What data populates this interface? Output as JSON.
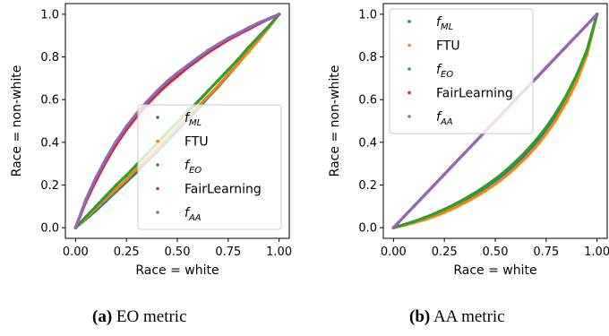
{
  "chart_data": [
    {
      "type": "scatter",
      "caption_prefix": "(a)",
      "caption_text": "EO metric",
      "xlabel": "Race = white",
      "ylabel": "Race = non-white",
      "xlim": [
        -0.05,
        1.05
      ],
      "ylim": [
        -0.05,
        1.05
      ],
      "xticks": [
        "0.00",
        "0.25",
        "0.50",
        "0.75",
        "1.00"
      ],
      "yticks": [
        "0.0",
        "0.2",
        "0.4",
        "0.6",
        "0.8",
        "1.0"
      ],
      "legend_position": "lower-right",
      "series": [
        {
          "name": "f",
          "sub": "ML",
          "color": "#1f77b4",
          "x": [
            0,
            0.05,
            0.1,
            0.15,
            0.2,
            0.25,
            0.3,
            0.35,
            0.4,
            0.45,
            0.5,
            0.55,
            0.6,
            0.65,
            0.7,
            0.75,
            0.8,
            0.85,
            0.9,
            0.95,
            1.0
          ],
          "y": [
            0,
            0.04,
            0.08,
            0.125,
            0.17,
            0.215,
            0.26,
            0.31,
            0.355,
            0.405,
            0.455,
            0.505,
            0.555,
            0.61,
            0.66,
            0.715,
            0.77,
            0.825,
            0.88,
            0.94,
            1.0
          ]
        },
        {
          "name": "FTU",
          "sub": "",
          "color": "#ff7f0e",
          "x": [
            0,
            0.05,
            0.1,
            0.15,
            0.2,
            0.25,
            0.3,
            0.35,
            0.4,
            0.45,
            0.5,
            0.55,
            0.6,
            0.65,
            0.7,
            0.75,
            0.8,
            0.85,
            0.9,
            0.95,
            1.0
          ],
          "y": [
            0,
            0.045,
            0.09,
            0.135,
            0.18,
            0.225,
            0.275,
            0.32,
            0.37,
            0.42,
            0.47,
            0.515,
            0.565,
            0.615,
            0.665,
            0.72,
            0.77,
            0.825,
            0.88,
            0.94,
            1.0
          ]
        },
        {
          "name": "f",
          "sub": "EO",
          "color": "#2ca02c",
          "x": [
            0,
            0.05,
            0.1,
            0.15,
            0.2,
            0.25,
            0.3,
            0.35,
            0.4,
            0.45,
            0.5,
            0.55,
            0.6,
            0.65,
            0.7,
            0.75,
            0.8,
            0.85,
            0.9,
            0.95,
            1.0
          ],
          "y": [
            0,
            0.05,
            0.1,
            0.15,
            0.2,
            0.245,
            0.295,
            0.345,
            0.395,
            0.445,
            0.495,
            0.545,
            0.59,
            0.64,
            0.69,
            0.74,
            0.79,
            0.845,
            0.895,
            0.945,
            1.0
          ]
        },
        {
          "name": "FairLearning",
          "sub": "",
          "color": "#d62728",
          "x": [
            0,
            0.05,
            0.1,
            0.15,
            0.2,
            0.25,
            0.3,
            0.35,
            0.4,
            0.45,
            0.5,
            0.55,
            0.6,
            0.65,
            0.7,
            0.75,
            0.8,
            0.85,
            0.9,
            0.95,
            1.0
          ],
          "y": [
            0,
            0.12,
            0.22,
            0.31,
            0.39,
            0.46,
            0.52,
            0.575,
            0.625,
            0.67,
            0.71,
            0.75,
            0.785,
            0.82,
            0.85,
            0.88,
            0.905,
            0.93,
            0.955,
            0.978,
            1.0
          ]
        },
        {
          "name": "f",
          "sub": "AA",
          "color": "#9467bd",
          "x": [
            0,
            0.05,
            0.1,
            0.15,
            0.2,
            0.25,
            0.3,
            0.35,
            0.4,
            0.45,
            0.5,
            0.55,
            0.6,
            0.65,
            0.7,
            0.75,
            0.8,
            0.85,
            0.9,
            0.95,
            1.0
          ],
          "y": [
            0,
            0.13,
            0.235,
            0.325,
            0.405,
            0.475,
            0.535,
            0.59,
            0.64,
            0.685,
            0.725,
            0.76,
            0.795,
            0.83,
            0.86,
            0.888,
            0.912,
            0.937,
            0.96,
            0.98,
            1.0
          ]
        }
      ]
    },
    {
      "type": "scatter",
      "caption_prefix": "(b)",
      "caption_text": "AA metric",
      "xlabel": "Race = white",
      "ylabel": "Race = non-white",
      "xlim": [
        -0.05,
        1.05
      ],
      "ylim": [
        -0.05,
        1.05
      ],
      "xticks": [
        "0.00",
        "0.25",
        "0.50",
        "0.75",
        "1.00"
      ],
      "yticks": [
        "0.0",
        "0.2",
        "0.4",
        "0.6",
        "0.8",
        "1.0"
      ],
      "legend_position": "upper-left",
      "series": [
        {
          "name": "f",
          "sub": "ML",
          "color": "#1f77b4",
          "x": [
            0,
            0.05,
            0.1,
            0.15,
            0.2,
            0.25,
            0.3,
            0.35,
            0.4,
            0.45,
            0.5,
            0.55,
            0.6,
            0.65,
            0.7,
            0.75,
            0.8,
            0.85,
            0.9,
            0.95,
            1.0
          ],
          "y": [
            0,
            0.012,
            0.025,
            0.04,
            0.058,
            0.078,
            0.1,
            0.125,
            0.152,
            0.182,
            0.215,
            0.252,
            0.295,
            0.342,
            0.395,
            0.455,
            0.525,
            0.605,
            0.7,
            0.82,
            1.0
          ]
        },
        {
          "name": "FTU",
          "sub": "",
          "color": "#ff7f0e",
          "x": [
            0,
            0.05,
            0.1,
            0.15,
            0.2,
            0.25,
            0.3,
            0.35,
            0.4,
            0.45,
            0.5,
            0.55,
            0.6,
            0.65,
            0.7,
            0.75,
            0.8,
            0.85,
            0.9,
            0.95,
            1.0
          ],
          "y": [
            0,
            0.011,
            0.023,
            0.037,
            0.053,
            0.072,
            0.093,
            0.117,
            0.143,
            0.172,
            0.205,
            0.241,
            0.282,
            0.328,
            0.38,
            0.44,
            0.508,
            0.59,
            0.685,
            0.81,
            1.0
          ]
        },
        {
          "name": "f",
          "sub": "EO",
          "color": "#2ca02c",
          "x": [
            0,
            0.05,
            0.1,
            0.15,
            0.2,
            0.25,
            0.3,
            0.35,
            0.4,
            0.45,
            0.5,
            0.55,
            0.6,
            0.65,
            0.7,
            0.75,
            0.8,
            0.85,
            0.9,
            0.95,
            1.0
          ],
          "y": [
            0,
            0.014,
            0.029,
            0.046,
            0.065,
            0.086,
            0.109,
            0.135,
            0.163,
            0.194,
            0.228,
            0.266,
            0.309,
            0.357,
            0.41,
            0.47,
            0.54,
            0.62,
            0.715,
            0.83,
            1.0
          ]
        },
        {
          "name": "FairLearning",
          "sub": "",
          "color": "#d62728",
          "x": [
            0,
            0.05,
            0.1,
            0.15,
            0.2,
            0.25,
            0.3,
            0.35,
            0.4,
            0.45,
            0.5,
            0.55,
            0.6,
            0.65,
            0.7,
            0.75,
            0.8,
            0.85,
            0.9,
            0.95,
            1.0
          ],
          "y": [
            0,
            0.05,
            0.1,
            0.15,
            0.2,
            0.25,
            0.3,
            0.35,
            0.4,
            0.45,
            0.5,
            0.55,
            0.6,
            0.65,
            0.7,
            0.75,
            0.8,
            0.85,
            0.9,
            0.95,
            1.0
          ]
        },
        {
          "name": "f",
          "sub": "AA",
          "color": "#9467bd",
          "x": [
            0,
            0.05,
            0.1,
            0.15,
            0.2,
            0.25,
            0.3,
            0.35,
            0.4,
            0.45,
            0.5,
            0.55,
            0.6,
            0.65,
            0.7,
            0.75,
            0.8,
            0.85,
            0.9,
            0.95,
            1.0
          ],
          "y": [
            0,
            0.05,
            0.1,
            0.15,
            0.2,
            0.25,
            0.3,
            0.35,
            0.4,
            0.45,
            0.5,
            0.55,
            0.6,
            0.65,
            0.7,
            0.75,
            0.8,
            0.85,
            0.9,
            0.95,
            1.0
          ]
        }
      ]
    }
  ]
}
